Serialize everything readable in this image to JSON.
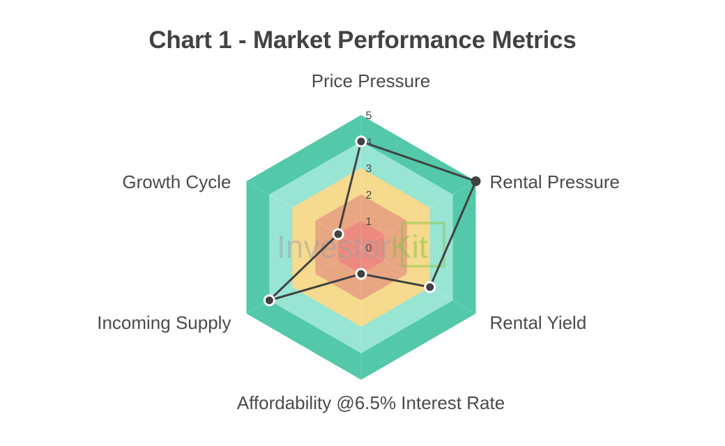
{
  "chart_data": {
    "type": "radar",
    "title": "Chart 1 - Market Performance Metrics",
    "axes": [
      "Price Pressure",
      "Rental Pressure",
      "Rental Yield",
      "Affordability @6.5% Interest Rate",
      "Incoming Supply",
      "Growth Cycle"
    ],
    "r_ticks": [
      "0",
      "1",
      "2",
      "3",
      "4",
      "5"
    ],
    "r_range": [
      0,
      5
    ],
    "series": [
      {
        "values": [
          4,
          5,
          3,
          1,
          4,
          1
        ]
      }
    ],
    "bands": [
      {
        "from": 4,
        "to": 5,
        "color": "#53c9a9"
      },
      {
        "from": 3,
        "to": 4,
        "color": "#99e5d4"
      },
      {
        "from": 2,
        "to": 3,
        "color": "#f6da8e"
      },
      {
        "from": 1,
        "to": 2,
        "color": "#e8a683"
      },
      {
        "from": 0,
        "to": 1,
        "color": "#ec8a80"
      }
    ],
    "line_color": "#424242",
    "watermark": {
      "text_main": "Investor ",
      "text_accent": "Kit"
    }
  }
}
